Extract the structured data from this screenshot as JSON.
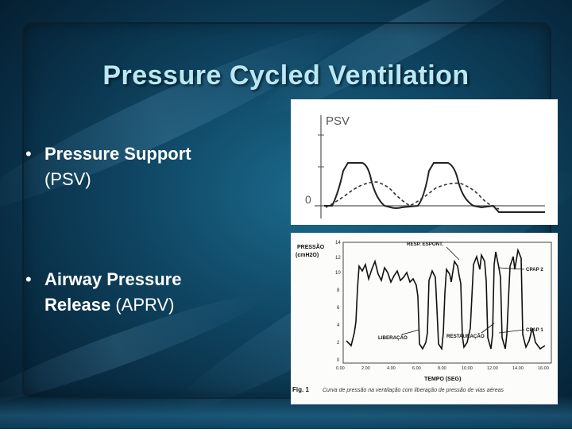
{
  "slide": {
    "title": "Pressure Cycled Ventilation",
    "bullets": [
      {
        "marker": "•",
        "bold": "Pressure Support",
        "rest": "(PSV)"
      },
      {
        "marker": "•",
        "bold": "Airway Pressure Release",
        "rest": "(APRV)"
      }
    ]
  },
  "psv_figure": {
    "label": "PSV",
    "zero_label": "0"
  },
  "aprv_figure": {
    "y_axis_label_1": "PRESSÃO",
    "y_axis_label_2": "(cmH2O)",
    "y_ticks": [
      "14",
      "12",
      "10",
      "8",
      "6",
      "4",
      "2",
      "0"
    ],
    "x_ticks": [
      "0.00",
      "2.00",
      "4.00",
      "6.00",
      "8.00",
      "10.00",
      "12.00",
      "14.00",
      "16.00"
    ],
    "x_axis_label": "TEMPO (SEG)",
    "annotations": {
      "resp_espont": "RESP. ESPONT.",
      "cpap2": "CPAP 2",
      "cpap1": "CPAP 1",
      "liberacao": "LIBERAÇÃO",
      "restauracao": "RESTAURAÇÃO"
    },
    "caption_fig": "Fig. 1",
    "caption_text": "Curva de pressão na ventilação com liberação de pressão de vias aéreas"
  }
}
